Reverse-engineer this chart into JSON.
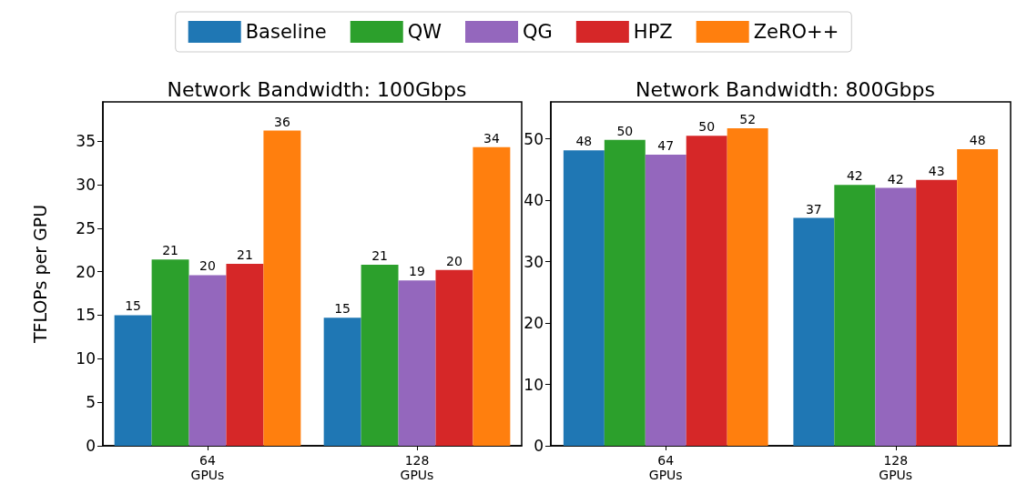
{
  "chart_data": [
    {
      "type": "bar",
      "title": "Network Bandwidth: 100Gbps",
      "ylabel": "TFLOPs per GPU",
      "categories": [
        "64\nGPUs",
        "128\nGPUs"
      ],
      "ylim": [
        0,
        39.5
      ],
      "yticks": [
        0,
        5,
        10,
        15,
        20,
        25,
        30,
        35
      ],
      "legend": "top",
      "grid": false,
      "series": [
        {
          "name": "Baseline",
          "color": "#1f77b4",
          "values": [
            15.0,
            14.7
          ],
          "value_labels": [
            "15",
            "15"
          ]
        },
        {
          "name": "QW",
          "color": "#2ca02c",
          "values": [
            21.4,
            20.8
          ],
          "value_labels": [
            "21",
            "21"
          ]
        },
        {
          "name": "QG",
          "color": "#9467bd",
          "values": [
            19.6,
            19.0
          ],
          "value_labels": [
            "20",
            "19"
          ]
        },
        {
          "name": "HPZ",
          "color": "#d62728",
          "values": [
            20.9,
            20.2
          ],
          "value_labels": [
            "21",
            "20"
          ]
        },
        {
          "name": "ZeRO++",
          "color": "#ff7f0e",
          "values": [
            36.2,
            34.3
          ],
          "value_labels": [
            "36",
            "34"
          ]
        }
      ]
    },
    {
      "type": "bar",
      "title": "Network Bandwidth: 800Gbps",
      "categories": [
        "64\nGPUs",
        "128\nGPUs"
      ],
      "ylim": [
        0,
        56
      ],
      "yticks": [
        0,
        10,
        20,
        30,
        40,
        50
      ],
      "grid": false,
      "series": [
        {
          "color": "#1f77b4",
          "values": [
            48.1,
            37.1
          ],
          "value_labels": [
            "48",
            "37"
          ]
        },
        {
          "color": "#2ca02c",
          "values": [
            49.8,
            42.5
          ],
          "value_labels": [
            "50",
            "42"
          ]
        },
        {
          "color": "#9467bd",
          "values": [
            47.4,
            42.0
          ],
          "value_labels": [
            "47",
            "42"
          ]
        },
        {
          "color": "#d62728",
          "values": [
            50.5,
            43.3
          ],
          "value_labels": [
            "50",
            "43"
          ]
        },
        {
          "color": "#ff7f0e",
          "values": [
            51.7,
            48.3
          ],
          "value_labels": [
            "52",
            "48"
          ]
        }
      ]
    }
  ]
}
